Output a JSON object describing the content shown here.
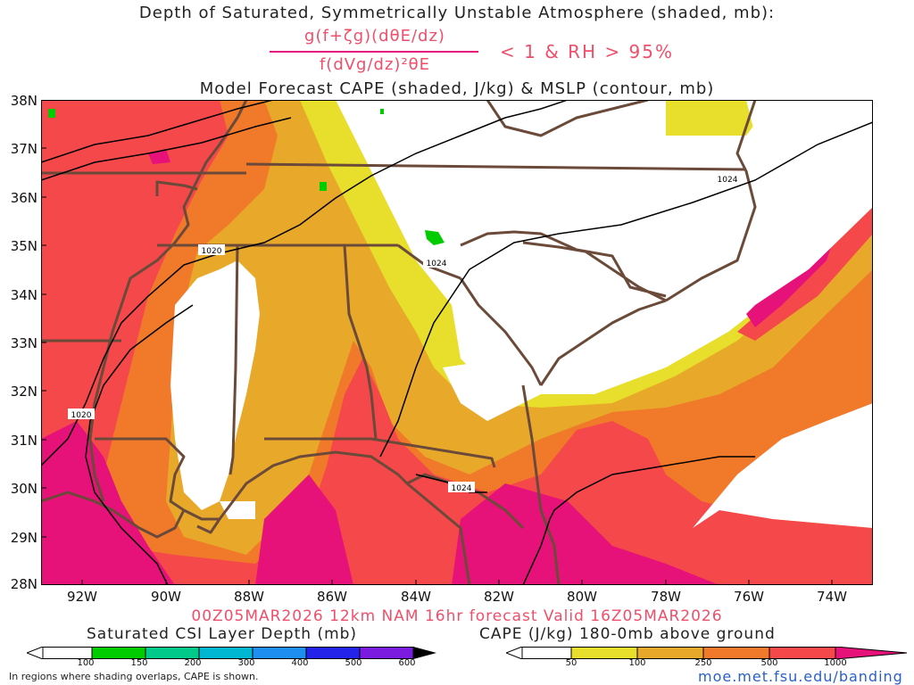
{
  "header": {
    "title_line1": "Depth of Saturated, Symmetrically Unstable Atmosphere (shaded, mb):",
    "formula_numerator": "g(f+ζg)(dθE/dz)",
    "formula_denominator": "f(dVg/dz)²θE",
    "condition": "< 1 & RH > 95%",
    "title_line3": "Model Forecast CAPE (shaded, J/kg) & MSLP (contour, mb)"
  },
  "axes": {
    "latitudes": [
      "38N",
      "37N",
      "36N",
      "35N",
      "34N",
      "33N",
      "32N",
      "31N",
      "30N",
      "29N",
      "28N"
    ],
    "longitudes": [
      "92W",
      "90W",
      "88W",
      "86W",
      "84W",
      "82W",
      "80W",
      "78W",
      "76W",
      "74W"
    ]
  },
  "isobars": {
    "labels": [
      "1020",
      "1020",
      "1024",
      "1024",
      "1024"
    ]
  },
  "valid_line": "00Z05MAR2026 12km NAM 16hr forecast Valid 16Z05MAR2026",
  "legend_csi": {
    "title": "Saturated CSI Layer Depth (mb)",
    "ticks": [
      "100",
      "150",
      "200",
      "300",
      "400",
      "500",
      "600"
    ],
    "colors": [
      "#00cc00",
      "#00c98a",
      "#00b7d1",
      "#1e8ff0",
      "#2323ea",
      "#7b1be0",
      "#000000"
    ]
  },
  "legend_cape": {
    "title": "CAPE (J/kg) 180-0mb above ground",
    "ticks": [
      "50",
      "100",
      "250",
      "500",
      "1000"
    ],
    "colors": [
      "#e8de2c",
      "#e8a82a",
      "#f07a2a",
      "#f5484a",
      "#e6127a"
    ]
  },
  "footer": {
    "note": "In regions where shading overlaps, CAPE is shown.",
    "url": "moe.met.fsu.edu/banding"
  },
  "colors": {
    "border": "#6b4a3a",
    "isobar": "#000000",
    "cape_low": "#e8de2c",
    "cape_mid": "#e8a82a",
    "cape_250": "#f07a2a",
    "cape_500": "#f5484a",
    "cape_1000": "#e6127a",
    "csi": "#00cc00"
  }
}
